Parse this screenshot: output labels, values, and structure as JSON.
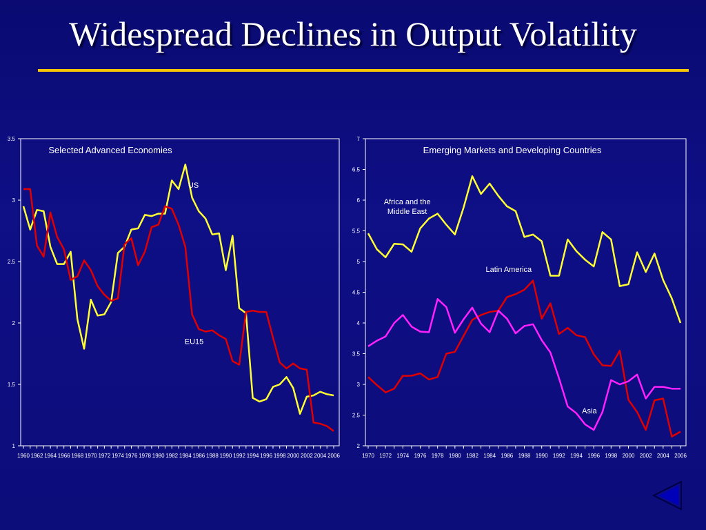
{
  "slide": {
    "title": "Widespread Declines in Output Volatility"
  },
  "colors": {
    "yellow": "#ffff33",
    "red": "#e00000",
    "magenta": "#ff22ff",
    "rule": "#f6c400"
  },
  "nav": {
    "back_icon": "triangle-left-icon"
  },
  "chart_data": [
    {
      "type": "line",
      "title": "Selected Advanced Economies",
      "xlabel": "",
      "ylabel": "",
      "ylim": [
        1,
        3.5
      ],
      "yticks": [
        1,
        1.5,
        2,
        2.5,
        3,
        3.5
      ],
      "ytick_labels": [
        "1",
        "1.5",
        "2",
        "2.5",
        "3",
        "3.5"
      ],
      "x": [
        1960,
        1961,
        1962,
        1963,
        1964,
        1965,
        1966,
        1967,
        1968,
        1969,
        1970,
        1971,
        1972,
        1973,
        1974,
        1975,
        1976,
        1977,
        1978,
        1979,
        1980,
        1981,
        1982,
        1983,
        1984,
        1985,
        1986,
        1987,
        1988,
        1989,
        1990,
        1991,
        1992,
        1993,
        1994,
        1995,
        1996,
        1997,
        1998,
        1999,
        2000,
        2001,
        2002,
        2003,
        2004,
        2005,
        2006
      ],
      "xticks": [
        "1960",
        "1962",
        "1964",
        "1966",
        "1968",
        "1970",
        "1972",
        "1974",
        "1976",
        "1978",
        "1980",
        "1982",
        "1984",
        "1986",
        "1988",
        "1990",
        "1992",
        "1994",
        "1996",
        "1998",
        "2000",
        "2002",
        "2004",
        "2006"
      ],
      "series": [
        {
          "name": "US",
          "color": "#ffff33",
          "label_x": 1985.2,
          "label_y": 3.1,
          "values": [
            2.95,
            2.76,
            2.92,
            2.91,
            2.62,
            2.48,
            2.48,
            2.58,
            2.03,
            1.79,
            2.19,
            2.06,
            2.07,
            2.17,
            2.57,
            2.62,
            2.76,
            2.77,
            2.88,
            2.87,
            2.89,
            2.89,
            3.16,
            3.09,
            3.29,
            3.02,
            2.91,
            2.85,
            2.72,
            2.73,
            2.43,
            2.71,
            2.12,
            2.08,
            1.39,
            1.36,
            1.38,
            1.48,
            1.5,
            1.56,
            1.47,
            1.26,
            1.4,
            1.41,
            1.44,
            1.42,
            1.41
          ]
        },
        {
          "name": "EU15",
          "color": "#e00000",
          "label_x": 1985.3,
          "label_y": 1.83,
          "values": [
            3.09,
            3.09,
            2.63,
            2.54,
            2.9,
            2.7,
            2.6,
            2.35,
            2.38,
            2.51,
            2.43,
            2.3,
            2.23,
            2.18,
            2.2,
            2.64,
            2.69,
            2.47,
            2.58,
            2.78,
            2.8,
            2.95,
            2.93,
            2.8,
            2.62,
            2.07,
            1.95,
            1.93,
            1.94,
            1.9,
            1.87,
            1.69,
            1.66,
            2.09,
            2.1,
            2.09,
            2.09,
            1.88,
            1.68,
            1.63,
            1.67,
            1.63,
            1.62,
            1.19,
            1.18,
            1.16,
            1.12
          ]
        }
      ]
    },
    {
      "type": "line",
      "title": "Emerging Markets and Developing Countries",
      "xlabel": "",
      "ylabel": "",
      "ylim": [
        2,
        7
      ],
      "yticks": [
        2,
        2.5,
        3,
        3.5,
        4,
        4.5,
        5,
        5.5,
        6,
        6.5,
        7
      ],
      "ytick_labels": [
        "2",
        "2.5",
        "3",
        "3.5",
        "4",
        "4.5",
        "5",
        "5.5",
        "6",
        "6.5",
        "7"
      ],
      "x": [
        1970,
        1971,
        1972,
        1973,
        1974,
        1975,
        1976,
        1977,
        1978,
        1979,
        1980,
        1981,
        1982,
        1983,
        1984,
        1985,
        1986,
        1987,
        1988,
        1989,
        1990,
        1991,
        1992,
        1993,
        1994,
        1995,
        1996,
        1997,
        1998,
        1999,
        2000,
        2001,
        2002,
        2003,
        2004,
        2005,
        2006
      ],
      "xticks": [
        "1970",
        "1972",
        "1974",
        "1976",
        "1978",
        "1980",
        "1982",
        "1984",
        "1986",
        "1988",
        "1990",
        "1992",
        "1994",
        "1996",
        "1998",
        "2000",
        "2002",
        "2004",
        "2006"
      ],
      "series": [
        {
          "name_lines": [
            "Africa and the",
            "Middle East"
          ],
          "color": "#ffff33",
          "label_x": 1974.5,
          "label_y": 5.93,
          "values": [
            5.46,
            5.2,
            5.07,
            5.29,
            5.28,
            5.16,
            5.54,
            5.7,
            5.78,
            5.6,
            5.44,
            5.88,
            6.39,
            6.1,
            6.27,
            6.07,
            5.9,
            5.82,
            5.4,
            5.44,
            5.33,
            4.77,
            4.77,
            5.36,
            5.17,
            5.03,
            4.92,
            5.48,
            5.36,
            4.6,
            4.63,
            5.15,
            4.83,
            5.13,
            4.7,
            4.4,
            4.0
          ]
        },
        {
          "name": "Latin America",
          "color": "#e00000",
          "label_x": 1986.2,
          "label_y": 4.83,
          "values": [
            3.12,
            2.99,
            2.87,
            2.93,
            3.14,
            3.14,
            3.18,
            3.08,
            3.12,
            3.5,
            3.53,
            3.79,
            4.05,
            4.13,
            4.18,
            4.2,
            4.42,
            4.47,
            4.54,
            4.69,
            4.07,
            4.32,
            3.82,
            3.92,
            3.8,
            3.77,
            3.49,
            3.31,
            3.3,
            3.55,
            2.75,
            2.55,
            2.26,
            2.74,
            2.77,
            2.15,
            2.23
          ]
        },
        {
          "name": "Asia",
          "color": "#ff22ff",
          "label_x": 1995.5,
          "label_y": 2.53,
          "values": [
            3.62,
            3.71,
            3.78,
            4.0,
            4.13,
            3.94,
            3.86,
            3.85,
            4.39,
            4.26,
            3.84,
            4.06,
            4.25,
            3.99,
            3.85,
            4.2,
            4.07,
            3.83,
            3.95,
            3.98,
            3.72,
            3.52,
            3.1,
            2.64,
            2.53,
            2.35,
            2.26,
            2.55,
            3.07,
            3.0,
            3.05,
            3.16,
            2.77,
            2.96,
            2.96,
            2.93,
            2.93
          ]
        }
      ]
    }
  ]
}
